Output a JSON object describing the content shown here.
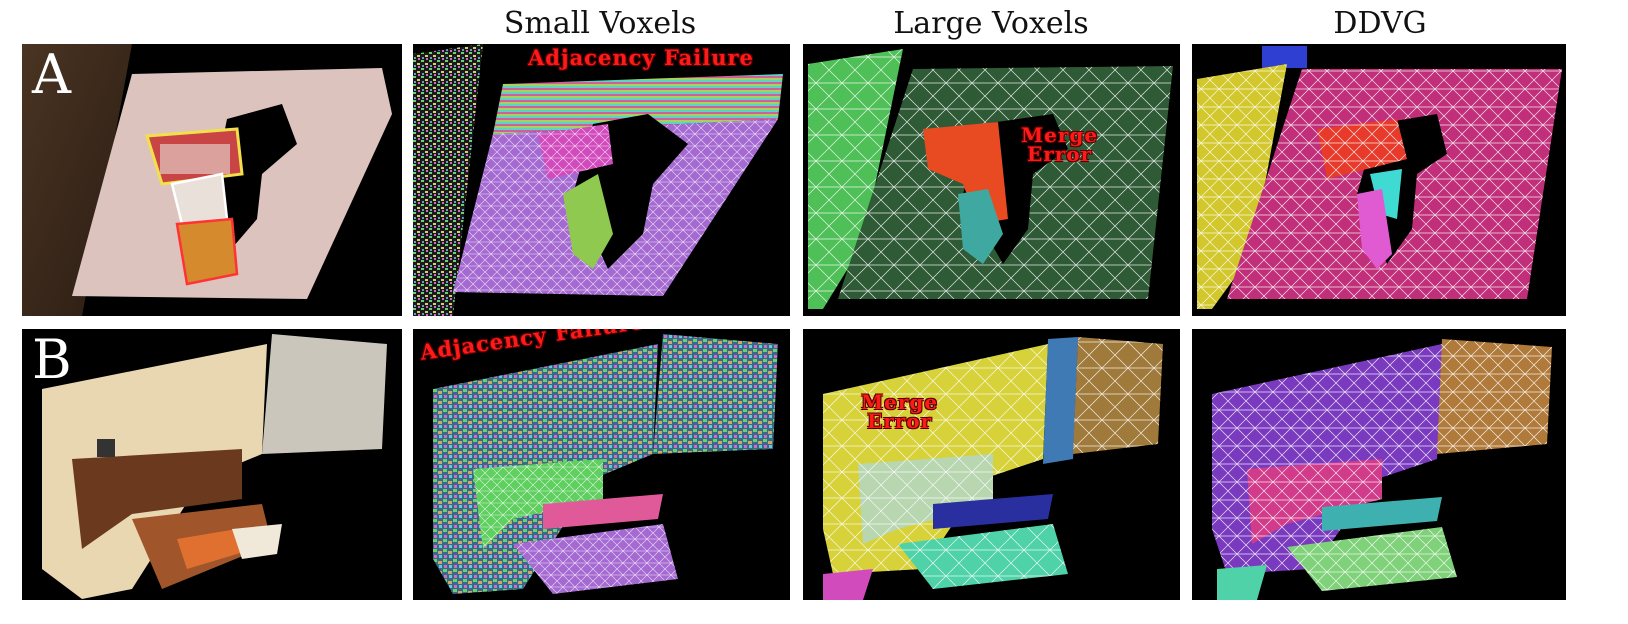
{
  "columns": {
    "small_voxels": "Small Voxels",
    "large_voxels": "Large Voxels",
    "ddvg": "DDVG"
  },
  "rows": {
    "a": "A",
    "b": "B"
  },
  "annotations": {
    "adjacency_failure_a": "Adjacency Failure",
    "merge_error_a_1": "Merge",
    "merge_error_a_2": "Error",
    "adjacency_failure_b": "Adjacency Failure",
    "merge_error_b_1": "Merge",
    "merge_error_b_2": "Error"
  },
  "colors": {
    "table_surface": "#dcc3be",
    "purple_segment": "#a56ad2",
    "dark_green_segment": "#2f5a36",
    "magenta_segment": "#c12f7a",
    "orange_red_segment": "#e84a22",
    "annotation_red": "#ff1a1a"
  }
}
